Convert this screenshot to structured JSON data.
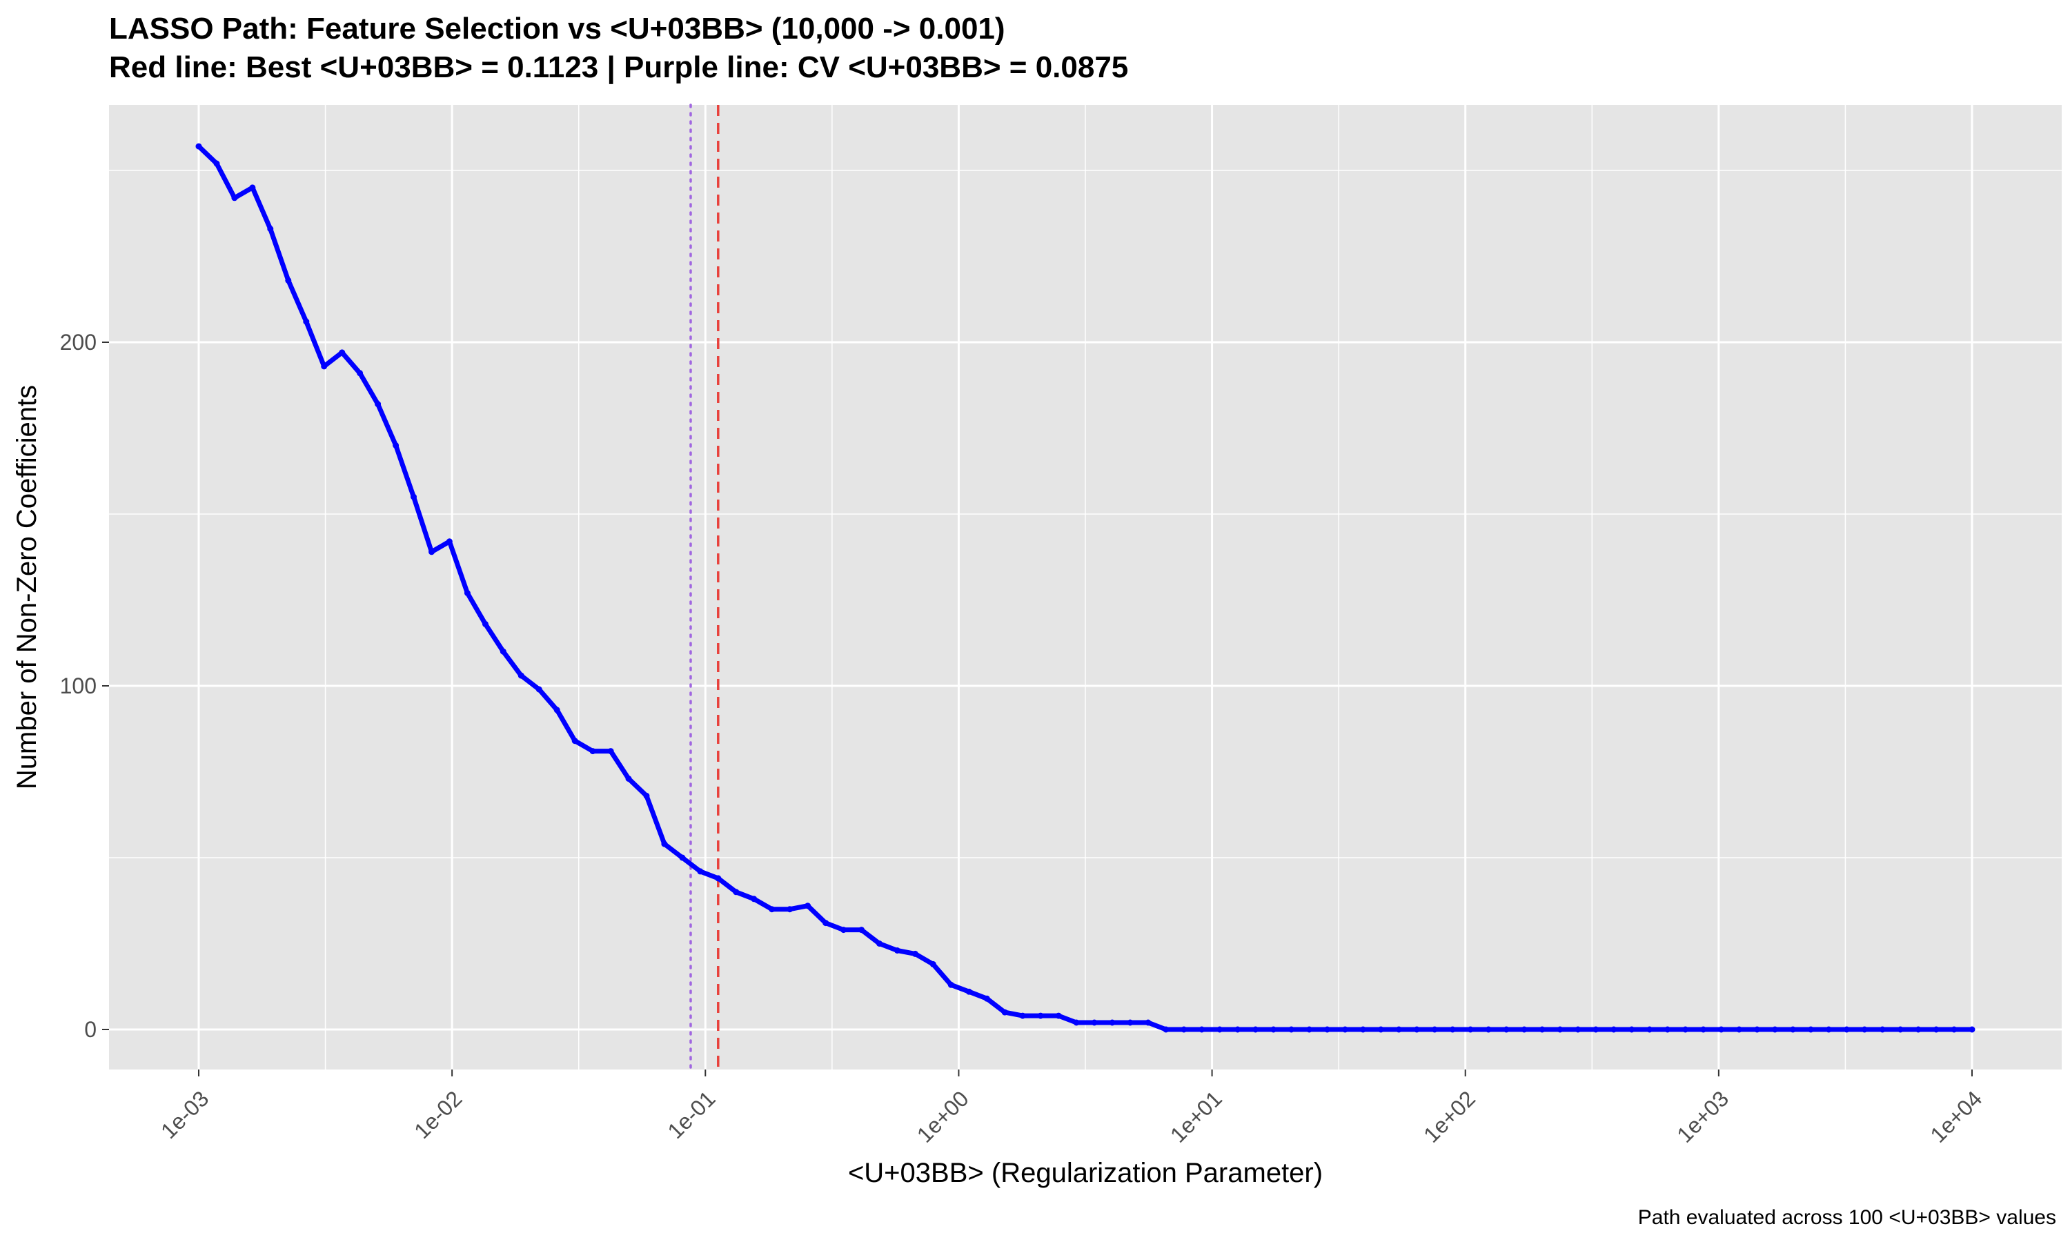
{
  "chart_data": {
    "type": "line",
    "title": "LASSO Path: Feature Selection vs <U+03BB> (10,000 -> 0.001)",
    "subtitle": "Red line: Best <U+03BB> = 0.1123 | Purple line: CV <U+03BB> = 0.0875",
    "xlabel": "<U+03BB> (Regularization Parameter)",
    "ylabel": "Number of Non-Zero Coefficients",
    "caption": "Path evaluated across 100 <U+03BB> values",
    "x_scale": "log10",
    "xlim": [
      0.001,
      10000
    ],
    "ylim": [
      0,
      257
    ],
    "x_ticks": [
      0.001,
      0.01,
      0.1,
      1,
      10,
      100,
      1000,
      10000
    ],
    "x_tick_labels": [
      "1e-03",
      "1e-02",
      "1e-01",
      "1e+00",
      "1e+01",
      "1e+02",
      "1e+03",
      "1e+04"
    ],
    "y_ticks": [
      0,
      100,
      200
    ],
    "y_tick_labels": [
      "0",
      "100",
      "200"
    ],
    "grid": true,
    "series": [
      {
        "color": "#0000ff",
        "x_range": [
          0.001,
          10000
        ],
        "n_points": 100,
        "values": [
          257,
          252,
          242,
          245,
          233,
          218,
          206,
          193,
          197,
          191,
          182,
          170,
          155,
          139,
          142,
          127,
          118,
          110,
          103,
          99,
          93,
          84,
          81,
          81,
          73,
          68,
          54,
          50,
          46,
          44,
          40,
          38,
          35,
          35,
          36,
          31,
          29,
          29,
          25,
          23,
          22,
          19,
          13,
          11,
          9,
          5,
          4,
          4,
          4,
          2,
          2,
          2,
          2,
          2,
          0,
          0,
          0,
          0,
          0,
          0,
          0,
          0,
          0,
          0,
          0,
          0,
          0,
          0,
          0,
          0,
          0,
          0,
          0,
          0,
          0,
          0,
          0,
          0,
          0,
          0,
          0,
          0,
          0,
          0,
          0,
          0,
          0,
          0,
          0,
          0,
          0,
          0,
          0,
          0,
          0,
          0,
          0,
          0,
          0,
          0
        ]
      }
    ],
    "reference_lines": [
      {
        "x": 0.1123,
        "color": "#e8413c",
        "style": "dashed"
      },
      {
        "x": 0.0875,
        "color": "#a066e0",
        "style": "dotted"
      }
    ]
  },
  "colors": {
    "panel_background": "#e5e5e5",
    "grid": "#ffffff",
    "line": "#0000ff",
    "best_lambda": "#e8413c",
    "cv_lambda": "#a066e0"
  }
}
